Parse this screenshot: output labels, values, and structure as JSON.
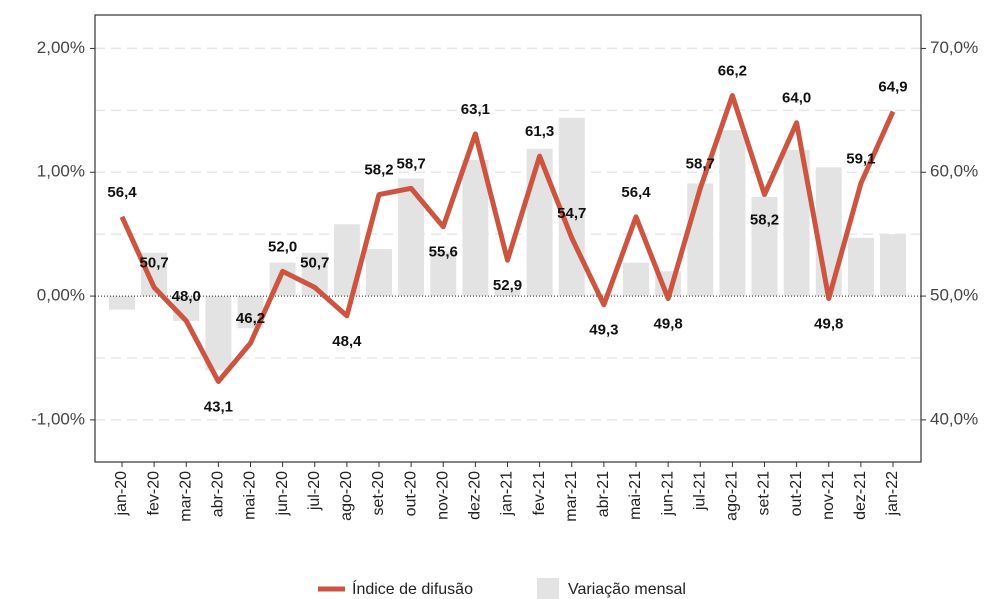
{
  "chart_data": {
    "type": "bar-line",
    "categories": [
      "jan-20",
      "fev-20",
      "mar-20",
      "abr-20",
      "mai-20",
      "jun-20",
      "jul-20",
      "ago-20",
      "set-20",
      "out-20",
      "nov-20",
      "dez-20",
      "jan-21",
      "fev-21",
      "mar-21",
      "abr-21",
      "mai-21",
      "jun-21",
      "jul-21",
      "ago-21",
      "set-21",
      "out-21",
      "nov-21",
      "dez-21",
      "jan-22"
    ],
    "series": [
      {
        "name": "Índice de difusão",
        "type": "line",
        "axis": "y2",
        "color": "#cd5540",
        "values": [
          56.4,
          50.7,
          48.0,
          43.1,
          46.2,
          52.0,
          50.7,
          48.4,
          58.2,
          58.7,
          55.6,
          63.1,
          52.9,
          61.3,
          54.7,
          49.3,
          56.4,
          49.8,
          58.7,
          66.2,
          58.2,
          64.0,
          49.8,
          59.1,
          64.9
        ],
        "value_labels": [
          "56,4",
          "50,7",
          "48,0",
          "43,1",
          "46,2",
          "52,0",
          "50,7",
          "48,4",
          "58,2",
          "58,7",
          "55,6",
          "63,1",
          "52,9",
          "61,3",
          "54,7",
          "49,3",
          "56,4",
          "49,8",
          "58,7",
          "66,2",
          "58,2",
          "64,0",
          "49,8",
          "59,1",
          "64,9"
        ]
      },
      {
        "name": "Variação mensal",
        "type": "bar",
        "axis": "y",
        "color": "#e3e3e3",
        "values": [
          -0.11,
          0.35,
          -0.2,
          -0.6,
          -0.26,
          0.27,
          0.35,
          0.58,
          0.38,
          0.95,
          0.36,
          1.1,
          0.05,
          1.19,
          1.44,
          0.02,
          0.27,
          0.2,
          0.91,
          1.34,
          0.8,
          1.18,
          1.04,
          0.47,
          0.5
        ]
      }
    ],
    "ylim": [
      -1.34,
      2.27
    ],
    "yticks": [
      {
        "value": -1,
        "label": "-1,00%"
      },
      {
        "value": 0,
        "label": "0,00%"
      },
      {
        "value": 1,
        "label": "1,00%"
      },
      {
        "value": 2,
        "label": "2,00%"
      }
    ],
    "minor_yticks": [
      -0.5,
      0.5,
      1.5
    ],
    "y2lim": [
      36.6,
      72.7
    ],
    "y2ticks": [
      {
        "value": 40,
        "label": "40,0%"
      },
      {
        "value": 50,
        "label": "50,0%"
      },
      {
        "value": 60,
        "label": "60,0%"
      },
      {
        "value": 70,
        "label": "70,0%"
      }
    ],
    "grid": true
  }
}
